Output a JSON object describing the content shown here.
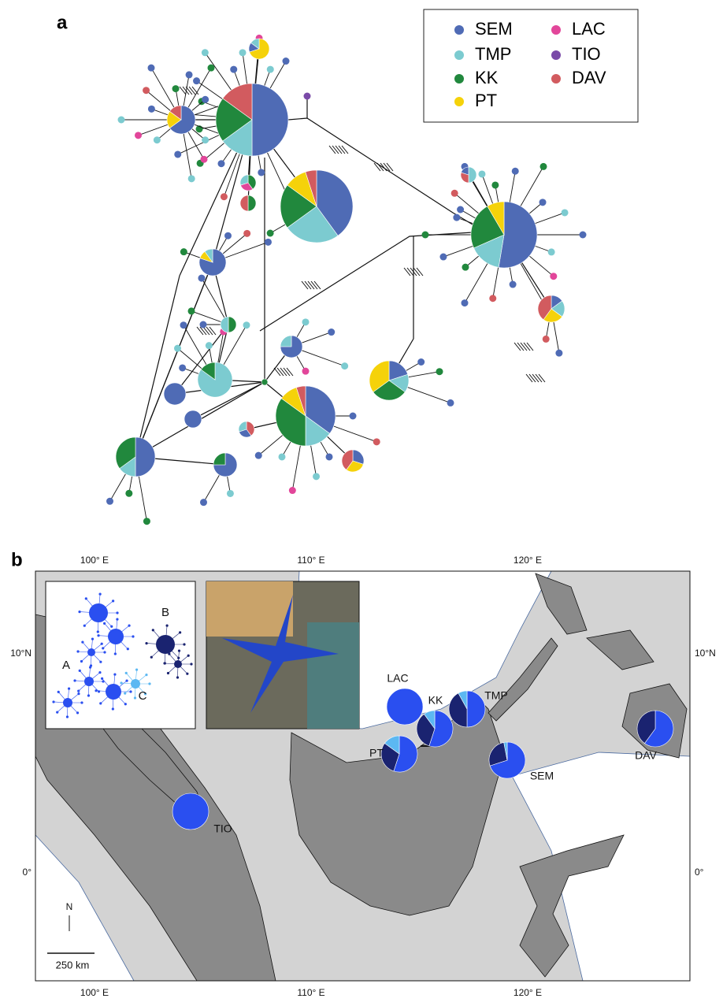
{
  "panel_a": {
    "label": "a",
    "legend": [
      {
        "name": "SEM",
        "color": "#4f6bb5"
      },
      {
        "name": "TMP",
        "color": "#7ccbd0"
      },
      {
        "name": "KK",
        "color": "#21883d"
      },
      {
        "name": "PT",
        "color": "#f5d20a"
      },
      {
        "name": "LAC",
        "color": "#e2469a"
      },
      {
        "name": "TIO",
        "color": "#7a4aa8"
      },
      {
        "name": "DAV",
        "color": "#d25b5f"
      }
    ]
  },
  "panel_b": {
    "label": "b",
    "lon_labels": [
      "100° E",
      "110° E",
      "120° E"
    ],
    "lat_labels": [
      "10°N",
      "0°"
    ],
    "sites": [
      {
        "name": "LAC"
      },
      {
        "name": "KK"
      },
      {
        "name": "TMP"
      },
      {
        "name": "PT"
      },
      {
        "name": "SEM"
      },
      {
        "name": "TIO"
      },
      {
        "name": "DAV"
      }
    ],
    "inset_labels": [
      "A",
      "B",
      "C"
    ],
    "north": "N",
    "scale": "250 km"
  }
}
